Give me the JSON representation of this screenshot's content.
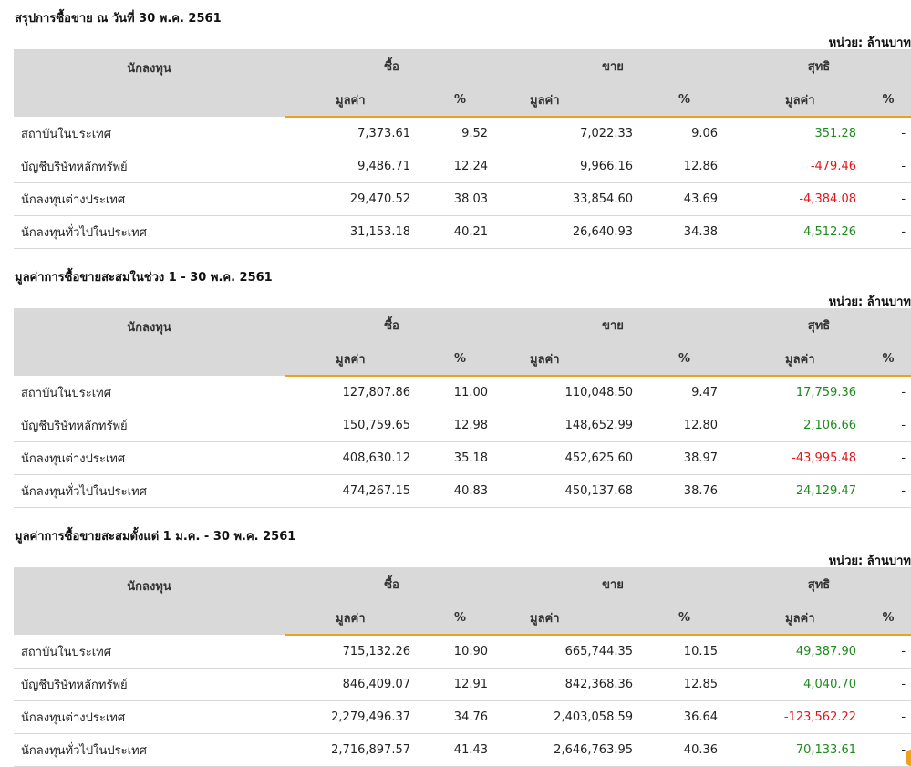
{
  "sections": [
    {
      "title": "สรุปการซื้อขาย ณ วันที่ 30 พ.ค. 2561",
      "unit": "หน่วย: ล้านบาท",
      "headers": {
        "investor": "นักลงทุน",
        "buy": "ซื้อ",
        "sell": "ขาย",
        "net": "สุทธิ",
        "value": "มูลค่า",
        "percent": "%"
      },
      "rows": [
        {
          "name": "สถาบันในประเทศ",
          "buy_value": "7,373.61",
          "buy_pct": "9.52",
          "sell_value": "7,022.33",
          "sell_pct": "9.06",
          "net_value": "351.28",
          "net_pct": "-",
          "net_sign": "pos"
        },
        {
          "name": "บัญชีบริษัทหลักทรัพย์",
          "buy_value": "9,486.71",
          "buy_pct": "12.24",
          "sell_value": "9,966.16",
          "sell_pct": "12.86",
          "net_value": "-479.46",
          "net_pct": "-",
          "net_sign": "neg"
        },
        {
          "name": "นักลงทุนต่างประเทศ",
          "buy_value": "29,470.52",
          "buy_pct": "38.03",
          "sell_value": "33,854.60",
          "sell_pct": "43.69",
          "net_value": "-4,384.08",
          "net_pct": "-",
          "net_sign": "neg"
        },
        {
          "name": "นักลงทุนทั่วไปในประเทศ",
          "buy_value": "31,153.18",
          "buy_pct": "40.21",
          "sell_value": "26,640.93",
          "sell_pct": "34.38",
          "net_value": "4,512.26",
          "net_pct": "-",
          "net_sign": "pos"
        }
      ]
    },
    {
      "title": "มูลค่าการซื้อขายสะสมในช่วง 1 - 30 พ.ค. 2561",
      "unit": "หน่วย: ล้านบาท",
      "headers": {
        "investor": "นักลงทุน",
        "buy": "ซื้อ",
        "sell": "ขาย",
        "net": "สุทธิ",
        "value": "มูลค่า",
        "percent": "%"
      },
      "rows": [
        {
          "name": "สถาบันในประเทศ",
          "buy_value": "127,807.86",
          "buy_pct": "11.00",
          "sell_value": "110,048.50",
          "sell_pct": "9.47",
          "net_value": "17,759.36",
          "net_pct": "-",
          "net_sign": "pos"
        },
        {
          "name": "บัญชีบริษัทหลักทรัพย์",
          "buy_value": "150,759.65",
          "buy_pct": "12.98",
          "sell_value": "148,652.99",
          "sell_pct": "12.80",
          "net_value": "2,106.66",
          "net_pct": "-",
          "net_sign": "pos"
        },
        {
          "name": "นักลงทุนต่างประเทศ",
          "buy_value": "408,630.12",
          "buy_pct": "35.18",
          "sell_value": "452,625.60",
          "sell_pct": "38.97",
          "net_value": "-43,995.48",
          "net_pct": "-",
          "net_sign": "neg"
        },
        {
          "name": "นักลงทุนทั่วไปในประเทศ",
          "buy_value": "474,267.15",
          "buy_pct": "40.83",
          "sell_value": "450,137.68",
          "sell_pct": "38.76",
          "net_value": "24,129.47",
          "net_pct": "-",
          "net_sign": "pos"
        }
      ]
    },
    {
      "title": "มูลค่าการซื้อขายสะสมตั้งแต่ 1 ม.ค. - 30 พ.ค. 2561",
      "unit": "หน่วย: ล้านบาท",
      "headers": {
        "investor": "นักลงทุน",
        "buy": "ซื้อ",
        "sell": "ขาย",
        "net": "สุทธิ",
        "value": "มูลค่า",
        "percent": "%"
      },
      "rows": [
        {
          "name": "สถาบันในประเทศ",
          "buy_value": "715,132.26",
          "buy_pct": "10.90",
          "sell_value": "665,744.35",
          "sell_pct": "10.15",
          "net_value": "49,387.90",
          "net_pct": "-",
          "net_sign": "pos"
        },
        {
          "name": "บัญชีบริษัทหลักทรัพย์",
          "buy_value": "846,409.07",
          "buy_pct": "12.91",
          "sell_value": "842,368.36",
          "sell_pct": "12.85",
          "net_value": "4,040.70",
          "net_pct": "-",
          "net_sign": "pos"
        },
        {
          "name": "นักลงทุนต่างประเทศ",
          "buy_value": "2,279,496.37",
          "buy_pct": "34.76",
          "sell_value": "2,403,058.59",
          "sell_pct": "36.64",
          "net_value": "-123,562.22",
          "net_pct": "-",
          "net_sign": "neg"
        },
        {
          "name": "นักลงทุนทั่วไปในประเทศ",
          "buy_value": "2,716,897.57",
          "buy_pct": "41.43",
          "sell_value": "2,646,763.95",
          "sell_pct": "40.36",
          "net_value": "70,133.61",
          "net_pct": "-",
          "net_sign": "pos"
        }
      ]
    }
  ],
  "colors": {
    "header_bg": "#d9d9d9",
    "accent_underline": "#f0a020",
    "positive": "#1e8a1e",
    "negative": "#e0161b"
  }
}
